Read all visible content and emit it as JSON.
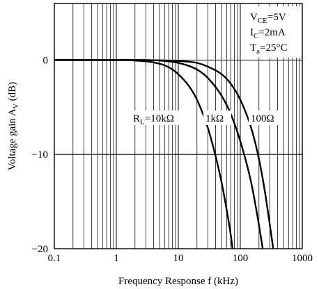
{
  "chart_data": {
    "type": "line",
    "xscale": "log",
    "xlim": [
      0.1,
      1000
    ],
    "ylim": [
      -20,
      6
    ],
    "grid": true,
    "xlabel": "Frequency Response f (kHz)",
    "ylabel": {
      "main": "Voltage gain A",
      "sub": "V",
      "unit": " (dB)"
    },
    "xticks": [
      {
        "value": 0.1,
        "label": "0.1"
      },
      {
        "value": 1,
        "label": "1"
      },
      {
        "value": 10,
        "label": "10"
      },
      {
        "value": 100,
        "label": "100"
      },
      {
        "value": 1000,
        "label": "1000"
      }
    ],
    "yticks": [
      {
        "value": 0,
        "label": "0"
      },
      {
        "value": -10,
        "label": "−10"
      },
      {
        "value": -20,
        "label": "−20"
      }
    ],
    "conditions": [
      {
        "main": "V",
        "sub": "CE",
        "rest": "=5V"
      },
      {
        "main": "I",
        "sub": "C",
        "rest": "=2mA"
      },
      {
        "main": "T",
        "sub": "a",
        "rest": "=25°C"
      }
    ],
    "series": [
      {
        "name": "R_L=10kΩ",
        "label": {
          "main": "R",
          "sub": "L",
          "rest": "=10kΩ"
        },
        "x": [
          0.1,
          1,
          2,
          4,
          7,
          10,
          15,
          20,
          30,
          40,
          50,
          60,
          70,
          75
        ],
        "y": [
          0,
          0,
          -0.05,
          -0.25,
          -0.75,
          -1.5,
          -2.8,
          -4.2,
          -7.2,
          -10.2,
          -13,
          -15.8,
          -18.5,
          -20
        ]
      },
      {
        "name": "1kΩ",
        "label": {
          "main": "1kΩ",
          "sub": "",
          "rest": ""
        },
        "x": [
          0.1,
          1,
          5,
          10,
          20,
          30,
          50,
          70,
          100,
          150,
          200,
          230
        ],
        "y": [
          0,
          0,
          -0.05,
          -0.3,
          -1,
          -1.9,
          -3.8,
          -5.7,
          -8.6,
          -13,
          -17.5,
          -20
        ]
      },
      {
        "name": "100Ω",
        "label": {
          "main": "100Ω",
          "sub": "",
          "rest": ""
        },
        "x": [
          0.1,
          1,
          10,
          20,
          30,
          50,
          70,
          100,
          150,
          200,
          250,
          300,
          340
        ],
        "y": [
          0,
          0,
          -0.1,
          -0.3,
          -0.7,
          -1.5,
          -2.5,
          -4.2,
          -7.2,
          -10.5,
          -14,
          -17.5,
          -20
        ]
      }
    ]
  }
}
